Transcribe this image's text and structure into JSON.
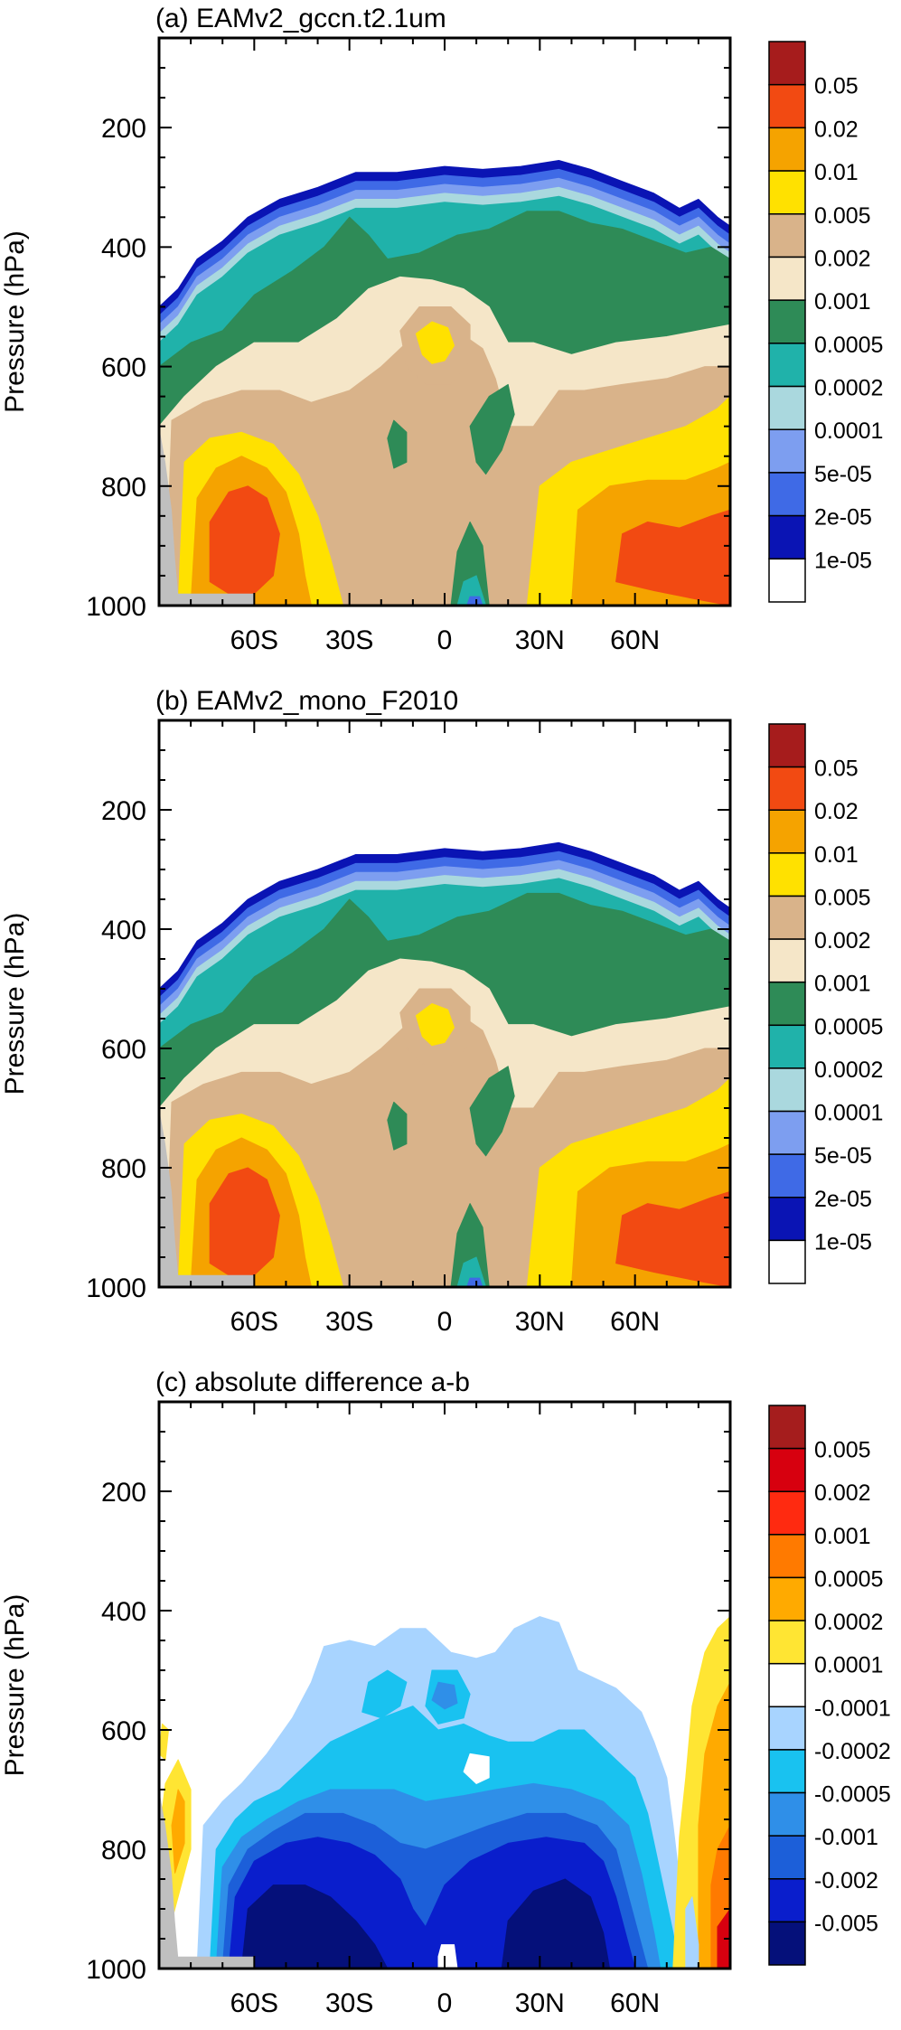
{
  "chart_data": [
    {
      "type": "contour",
      "title": "(a) EAMv2_gccn.t2.1um",
      "ylabel": "Pressure (hPa)",
      "x_ticks": [
        "60S",
        "30S",
        "0",
        "30N",
        "60N"
      ],
      "y_ticks": [
        "200",
        "400",
        "600",
        "800",
        "1000"
      ],
      "ylim": [
        1000,
        50
      ],
      "xlim": [
        -90,
        90
      ],
      "colorbar": {
        "labels": [
          "0.05",
          "0.02",
          "0.01",
          "0.005",
          "0.002",
          "0.001",
          "0.0005",
          "0.0002",
          "0.0001",
          "5e-05",
          "2e-05",
          "1e-05"
        ],
        "colors": [
          "#a61c1c",
          "#f24a12",
          "#f5a300",
          "#ffe100",
          "#d9b38a",
          "#f5e6c8",
          "#2e8b57",
          "#20b2aa",
          "#aad8de",
          "#7d9ef0",
          "#3f6ae6",
          "#0a14b4",
          "#ffffff"
        ]
      },
      "features": [
        {
          "level": "1e-05",
          "note": "top boundary near 260-300 hPa in tropics, 500 hPa at 90S, 370 hPa at 90N"
        },
        {
          "level": "0.001",
          "note": "pocket near 5S at 550 hPa"
        },
        {
          "level": "0.05",
          "note": "maxima near 60S 880 hPa and 60N-90N 900 hPa"
        }
      ]
    },
    {
      "type": "contour",
      "title": "(b) EAMv2_mono_F2010",
      "ylabel": "Pressure (hPa)",
      "x_ticks": [
        "60S",
        "30S",
        "0",
        "30N",
        "60N"
      ],
      "y_ticks": [
        "200",
        "400",
        "600",
        "800",
        "1000"
      ],
      "ylim": [
        1000,
        50
      ],
      "xlim": [
        -90,
        90
      ],
      "colorbar": {
        "labels": [
          "0.05",
          "0.02",
          "0.01",
          "0.005",
          "0.002",
          "0.001",
          "0.0005",
          "0.0002",
          "0.0001",
          "5e-05",
          "2e-05",
          "1e-05"
        ],
        "colors": [
          "#a61c1c",
          "#f24a12",
          "#f5a300",
          "#ffe100",
          "#d9b38a",
          "#f5e6c8",
          "#2e8b57",
          "#20b2aa",
          "#aad8de",
          "#7d9ef0",
          "#3f6ae6",
          "#0a14b4",
          "#ffffff"
        ]
      }
    },
    {
      "type": "contour",
      "title": "(c) absolute difference a-b",
      "ylabel": "Pressure (hPa)",
      "x_ticks": [
        "60S",
        "30S",
        "0",
        "30N",
        "60N"
      ],
      "y_ticks": [
        "200",
        "400",
        "600",
        "800",
        "1000"
      ],
      "ylim": [
        1000,
        50
      ],
      "xlim": [
        -90,
        90
      ],
      "colorbar": {
        "labels": [
          "0.005",
          "0.002",
          "0.001",
          "0.0005",
          "0.0002",
          "0.0001",
          "-0.0001",
          "-0.0002",
          "-0.0005",
          "-0.001",
          "-0.002",
          "-0.005"
        ],
        "colors": [
          "#a51d1d",
          "#d7000f",
          "#ff2a10",
          "#ff7a00",
          "#ffaa00",
          "#ffe533",
          "#ffffff",
          "#a8d4ff",
          "#19c2f0",
          "#2f8fe8",
          "#1c5fd9",
          "#0a1ecc",
          "#05107a"
        ]
      }
    }
  ]
}
